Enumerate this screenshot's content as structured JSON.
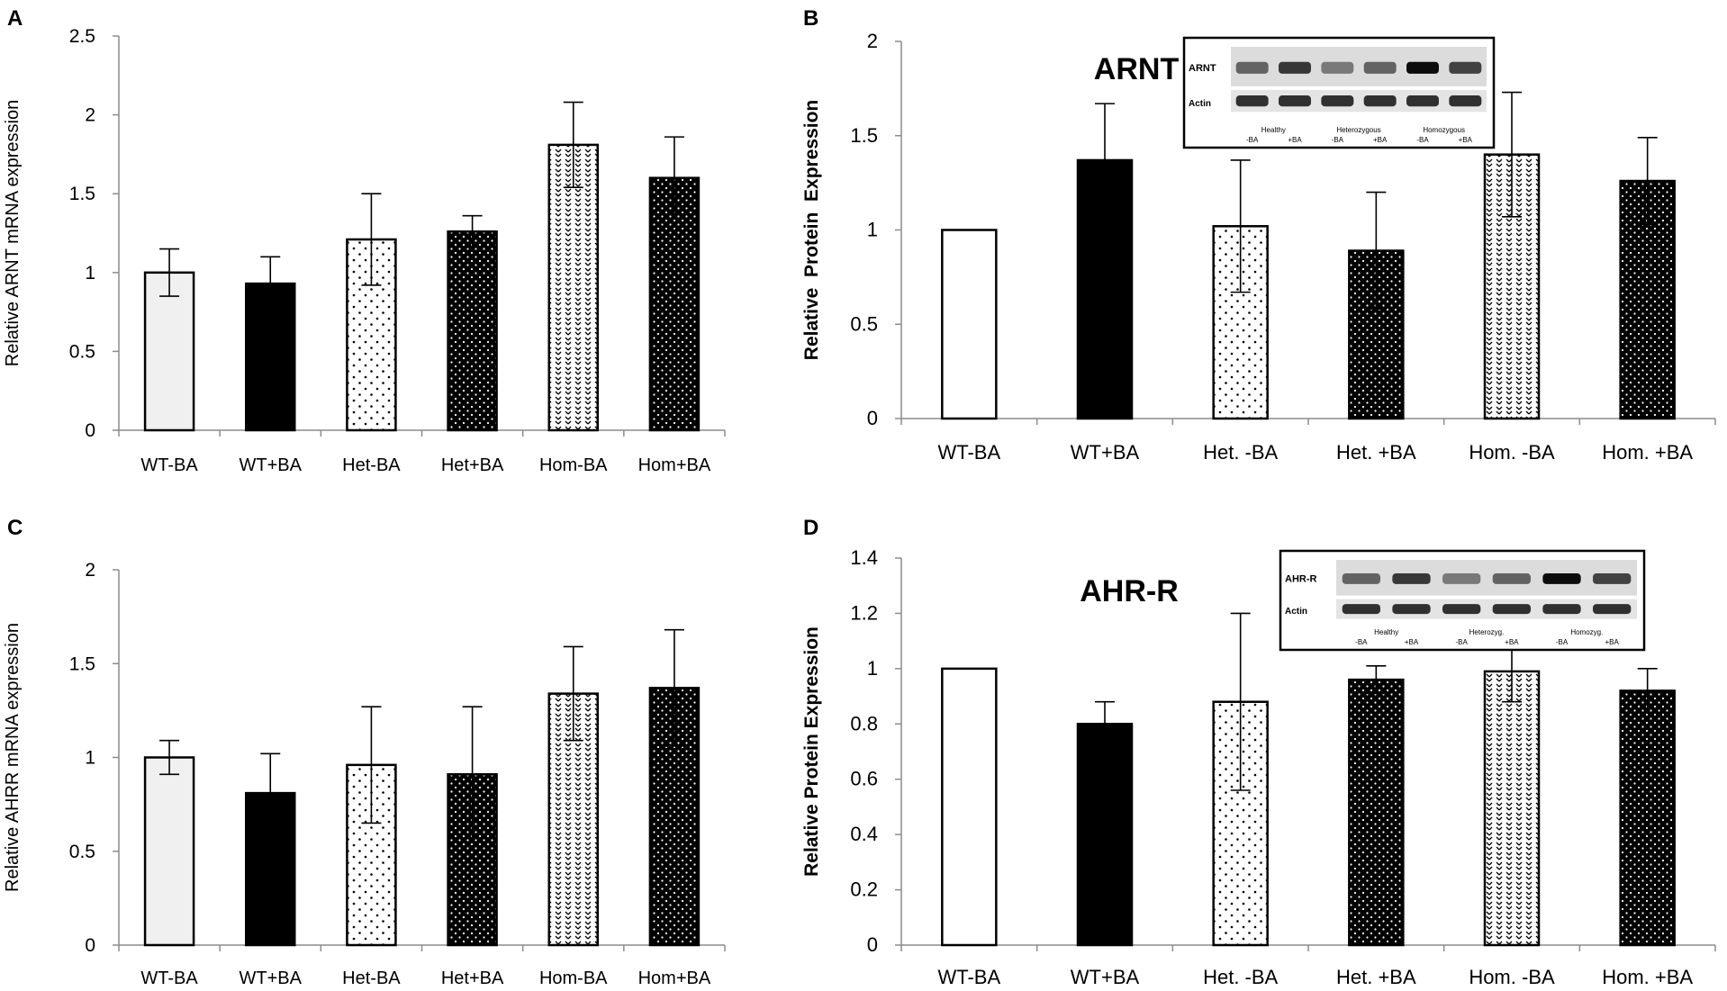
{
  "chart_data": [
    {
      "panel_label": "A",
      "type": "bar",
      "title": "",
      "xlabel": "",
      "ylabel": "Relative ARNT mRNA expression",
      "ylim": [
        0,
        2.5
      ],
      "yticks": [
        "0",
        "0.5",
        "1",
        "1.5",
        "2",
        "2.5"
      ],
      "grid": false,
      "categories": [
        "WT-BA",
        "WT+BA",
        "Het-BA",
        "Het+BA",
        "Hom-BA",
        "Hom+BA"
      ],
      "values": [
        1.0,
        0.93,
        1.21,
        1.26,
        1.81,
        1.6
      ],
      "errors": [
        0.15,
        0.17,
        0.29,
        0.1,
        0.27,
        0.26
      ],
      "patterns": [
        "lightgray",
        "black",
        "sparse-dots",
        "dense-dots-black",
        "crosshatch",
        "dense-dots-black"
      ]
    },
    {
      "panel_label": "B",
      "type": "bar",
      "title": "ARNT",
      "xlabel": "",
      "ylabel": "Relative  Protein  Expression",
      "ylim": [
        0,
        2
      ],
      "yticks": [
        "0",
        "0.5",
        "1",
        "1.5",
        "2"
      ],
      "grid": false,
      "categories": [
        "WT-BA",
        "WT+BA",
        "Het. -BA",
        "Het. +BA",
        "Hom. -BA",
        "Hom. +BA"
      ],
      "values": [
        1.0,
        1.37,
        1.02,
        0.89,
        1.4,
        1.26
      ],
      "errors": [
        0,
        0.3,
        0.35,
        0.31,
        0.33,
        0.23
      ],
      "patterns": [
        "white",
        "black",
        "sparse-dots",
        "dense-dots-black",
        "crosshatch",
        "dense-dots-black"
      ],
      "blot_inset": {
        "protein_label": "ARNT",
        "control_label": "Actin",
        "groups": [
          "Healthy",
          "Heterozygous",
          "Homozygous"
        ],
        "lanes": [
          "-BA",
          "+BA",
          "-BA",
          "+BA",
          "-BA",
          "+BA"
        ]
      }
    },
    {
      "panel_label": "C",
      "type": "bar",
      "title": "",
      "xlabel": "",
      "ylabel": "Relative AHRR mRNA expression",
      "ylim": [
        0,
        2
      ],
      "yticks": [
        "0",
        "0.5",
        "1",
        "1.5",
        "2"
      ],
      "grid": false,
      "categories": [
        "WT-BA",
        "WT+BA",
        "Het-BA",
        "Het+BA",
        "Hom-BA",
        "Hom+BA"
      ],
      "values": [
        1.0,
        0.81,
        0.96,
        0.91,
        1.34,
        1.37
      ],
      "errors": [
        0.09,
        0.21,
        0.31,
        0.36,
        0.25,
        0.31
      ],
      "patterns": [
        "lightgray",
        "black",
        "sparse-dots",
        "dense-dots-black",
        "crosshatch",
        "dense-dots-black"
      ]
    },
    {
      "panel_label": "D",
      "type": "bar",
      "title": "AHR-R",
      "xlabel": "",
      "ylabel": "Relative Protein Expression",
      "ylim": [
        0,
        1.4
      ],
      "yticks": [
        "0",
        "0.2",
        "0.4",
        "0.6",
        "0.8",
        "1",
        "1.2",
        "1.4"
      ],
      "grid": false,
      "categories": [
        "WT-BA",
        "WT+BA",
        "Het. -BA",
        "Het. +BA",
        "Hom. -BA",
        "Hom. +BA"
      ],
      "values": [
        1.0,
        0.8,
        0.88,
        0.96,
        0.99,
        0.92
      ],
      "errors": [
        0,
        0.08,
        0.32,
        0.05,
        0.11,
        0.08
      ],
      "patterns": [
        "white",
        "black",
        "sparse-dots",
        "dense-dots-black",
        "crosshatch",
        "dense-dots-black"
      ],
      "blot_inset": {
        "protein_label": "AHR-R",
        "control_label": "Actin",
        "groups": [
          "Healthy",
          "Heterozyg.",
          "Homozyg."
        ],
        "lanes": [
          "-BA",
          "+BA",
          "-BA",
          "+BA",
          "-BA",
          "+BA"
        ]
      }
    }
  ]
}
